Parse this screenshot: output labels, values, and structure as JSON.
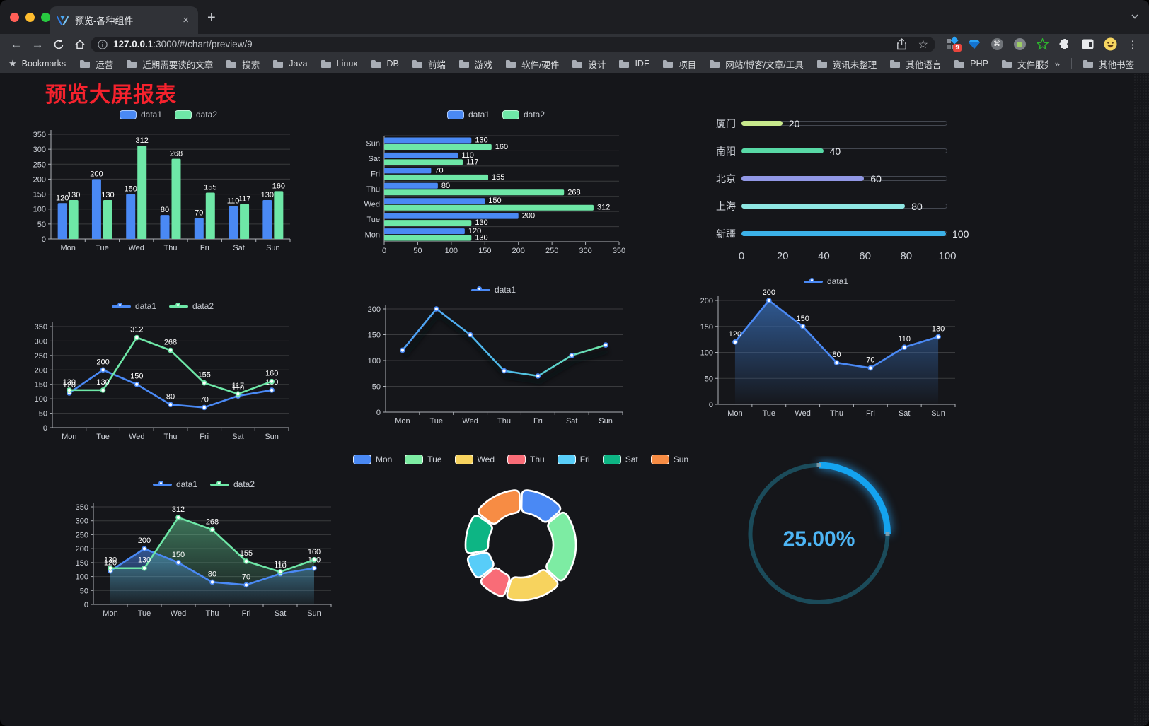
{
  "browser": {
    "tab": {
      "title": "预览-各种组件"
    },
    "url": {
      "host": "127.0.0.1",
      "path": ":3000/#/chart/preview/9"
    },
    "icons": {
      "close": "×",
      "new_tab": "+",
      "back": "←",
      "forward": "→",
      "star": "☆",
      "bookmarks_star": "★",
      "menu": "⋮",
      "cmd": "⌘"
    },
    "extension_badge": "9"
  },
  "bookmarks": {
    "root": "Bookmarks",
    "items": [
      "运营",
      "近期需要读的文章",
      "搜索",
      "Java",
      "Linux",
      "DB",
      "前端",
      "游戏",
      "软件/硬件",
      "设计",
      "IDE",
      "项目",
      "网站/博客/文章/工具",
      "资讯未整理",
      "其他语言",
      "PHP",
      "文件服务器"
    ],
    "overflow": "»",
    "other": "其他书签"
  },
  "page": {
    "title": "预览大屏报表",
    "title_color": "#f5222d"
  },
  "chart_data": [
    {
      "id": "grouped-vertical-bar",
      "type": "bar",
      "title": "",
      "categories": [
        "Mon",
        "Tue",
        "Wed",
        "Thu",
        "Fri",
        "Sat",
        "Sun"
      ],
      "series": [
        {
          "name": "data1",
          "color": "#4a89f4",
          "values": [
            120,
            200,
            150,
            80,
            70,
            110,
            130
          ]
        },
        {
          "name": "data2",
          "color": "#6ee7a7",
          "values": [
            130,
            130,
            312,
            268,
            155,
            117,
            160
          ]
        }
      ],
      "ylim": [
        0,
        350
      ],
      "yStep": 50,
      "grid": true,
      "legend_position": "top",
      "value_labels": true
    },
    {
      "id": "grouped-horizontal-bar",
      "type": "bar",
      "orientation": "horizontal",
      "title": "",
      "categories": [
        "Mon",
        "Tue",
        "Wed",
        "Thu",
        "Fri",
        "Sat",
        "Sun"
      ],
      "series": [
        {
          "name": "data1",
          "color": "#4a89f4",
          "values": [
            120,
            200,
            150,
            80,
            70,
            110,
            130
          ]
        },
        {
          "name": "data2",
          "color": "#6ee7a7",
          "values": [
            130,
            130,
            312,
            268,
            155,
            117,
            160
          ]
        }
      ],
      "xlim": [
        0,
        350
      ],
      "xStep": 50,
      "grid": true,
      "legend_position": "top",
      "value_labels": true
    },
    {
      "id": "progress-bars",
      "type": "bar",
      "orientation": "progress",
      "title": "",
      "categories": [
        "厦门",
        "南阳",
        "北京",
        "上海",
        "新疆"
      ],
      "values": [
        20,
        40,
        60,
        80,
        100
      ],
      "colors": [
        "#c8e98c",
        "#58d9a6",
        "#9197e5",
        "#8fe7e3",
        "#3cb1e8"
      ],
      "xlim": [
        0,
        100
      ],
      "ticks": [
        0,
        20,
        40,
        60,
        80,
        100
      ],
      "value_labels": true
    },
    {
      "id": "two-series-line",
      "type": "line",
      "title": "",
      "categories": [
        "Mon",
        "Tue",
        "Wed",
        "Thu",
        "Fri",
        "Sat",
        "Sun"
      ],
      "series": [
        {
          "name": "data1",
          "color": "#4a89f4",
          "values": [
            120,
            200,
            150,
            80,
            70,
            110,
            130
          ]
        },
        {
          "name": "data2",
          "color": "#6ee7a7",
          "values": [
            130,
            130,
            312,
            268,
            155,
            117,
            160
          ]
        }
      ],
      "ylim": [
        0,
        350
      ],
      "yStep": 50,
      "grid": true,
      "legend_position": "top",
      "value_labels": true
    },
    {
      "id": "gradient-line",
      "type": "line",
      "title": "",
      "categories": [
        "Mon",
        "Tue",
        "Wed",
        "Thu",
        "Fri",
        "Sat",
        "Sun"
      ],
      "series": [
        {
          "name": "data1",
          "color": "#4a89f4",
          "values": [
            120,
            200,
            150,
            80,
            70,
            110,
            130
          ],
          "gradient_stroke": {
            "stops": [
              [
                "0%",
                "#4e9df5"
              ],
              [
                "55%",
                "#4fc0e8"
              ],
              [
                "100%",
                "#6ee7a7"
              ]
            ]
          },
          "shadow": true
        }
      ],
      "ylim": [
        0,
        200
      ],
      "yStep": 50,
      "grid": true,
      "legend_position": "top",
      "value_labels": false
    },
    {
      "id": "area-line",
      "type": "line",
      "title": "",
      "categories": [
        "Mon",
        "Tue",
        "Wed",
        "Thu",
        "Fri",
        "Sat",
        "Sun"
      ],
      "series": [
        {
          "name": "data1",
          "color": "#4a89f4",
          "values": [
            120,
            200,
            150,
            80,
            70,
            110,
            130
          ],
          "area": {
            "from": "rgba(52,100,165,0.85)",
            "to": "rgba(52,100,165,0.02)"
          }
        }
      ],
      "ylim": [
        0,
        200
      ],
      "yStep": 50,
      "grid": true,
      "legend_position": "top",
      "value_labels": true
    },
    {
      "id": "two-series-area-line",
      "type": "line",
      "title": "",
      "categories": [
        "Mon",
        "Tue",
        "Wed",
        "Thu",
        "Fri",
        "Sat",
        "Sun"
      ],
      "series": [
        {
          "name": "data1",
          "color": "#4a89f4",
          "values": [
            120,
            200,
            150,
            80,
            70,
            110,
            130
          ],
          "area": {
            "from": "rgba(74,137,244,0.55)",
            "to": "rgba(74,137,244,0.03)"
          }
        },
        {
          "name": "data2",
          "color": "#6ee7a7",
          "values": [
            130,
            130,
            312,
            268,
            155,
            117,
            160
          ],
          "area": {
            "from": "rgba(110,231,167,0.45)",
            "to": "rgba(110,231,167,0.03)"
          }
        }
      ],
      "ylim": [
        0,
        350
      ],
      "yStep": 50,
      "grid": true,
      "legend_position": "top",
      "value_labels": true
    },
    {
      "id": "donut",
      "type": "pie",
      "title": "",
      "categories": [
        "Mon",
        "Tue",
        "Wed",
        "Thu",
        "Fri",
        "Sat",
        "Sun"
      ],
      "values": [
        120,
        200,
        150,
        80,
        70,
        110,
        130
      ],
      "colors": [
        "#4a89f4",
        "#7deca3",
        "#f7d35e",
        "#f96c77",
        "#58cdf8",
        "#0db584",
        "#f78c44"
      ],
      "border_color": "#ffffff",
      "legend_position": "top"
    },
    {
      "id": "gauge",
      "type": "gauge",
      "title": "",
      "value": 25,
      "max": 100,
      "label": "25.00%",
      "track_color": "#1b4b5a",
      "arc_color": "#14a3ef",
      "text_color": "#4db5f5"
    }
  ]
}
